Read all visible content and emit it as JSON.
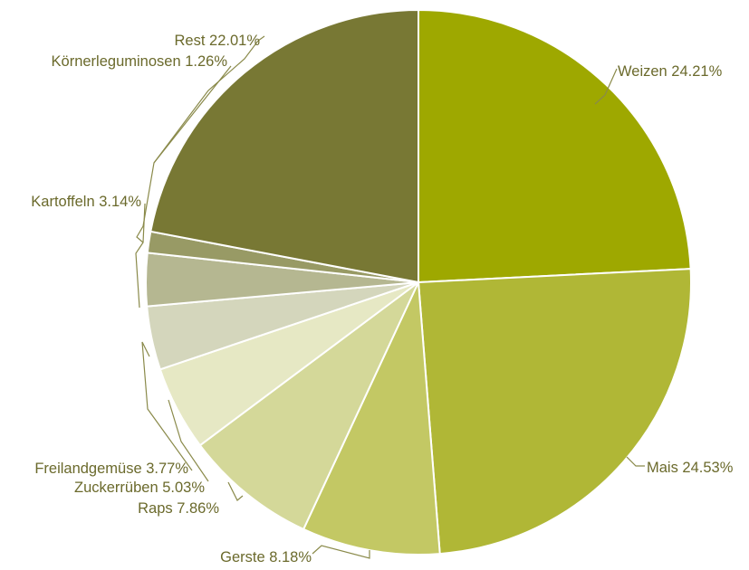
{
  "chart_data": {
    "type": "pie",
    "title": "",
    "slices": [
      {
        "label": "Weizen",
        "value": 24.21,
        "text": "Weizen 24.21%",
        "color": "#9ea800"
      },
      {
        "label": "Mais",
        "value": 24.53,
        "text": "Mais 24.53%",
        "color": "#b0b736"
      },
      {
        "label": "Gerste",
        "value": 8.18,
        "text": "Gerste 8.18%",
        "color": "#c3c864"
      },
      {
        "label": "Raps",
        "value": 7.86,
        "text": "Raps 7.86%",
        "color": "#d4d899"
      },
      {
        "label": "Zuckerrüben",
        "value": 5.03,
        "text": "Zuckerrüben 5.03%",
        "color": "#e6e8c4"
      },
      {
        "label": "Freilandgemüse",
        "value": 3.77,
        "text": "Freilandgemüse 3.77%",
        "color": "#d4d6bc"
      },
      {
        "label": "Kartoffeln",
        "value": 3.14,
        "text": "Kartoffeln 3.14%",
        "color": "#b5b791"
      },
      {
        "label": "Körnerleguminosen",
        "value": 1.26,
        "text": "Körnerleguminosen 1.26%",
        "color": "#989a65"
      },
      {
        "label": "Rest",
        "value": 22.01,
        "text": "Rest 22.01%",
        "color": "#787834"
      }
    ]
  }
}
